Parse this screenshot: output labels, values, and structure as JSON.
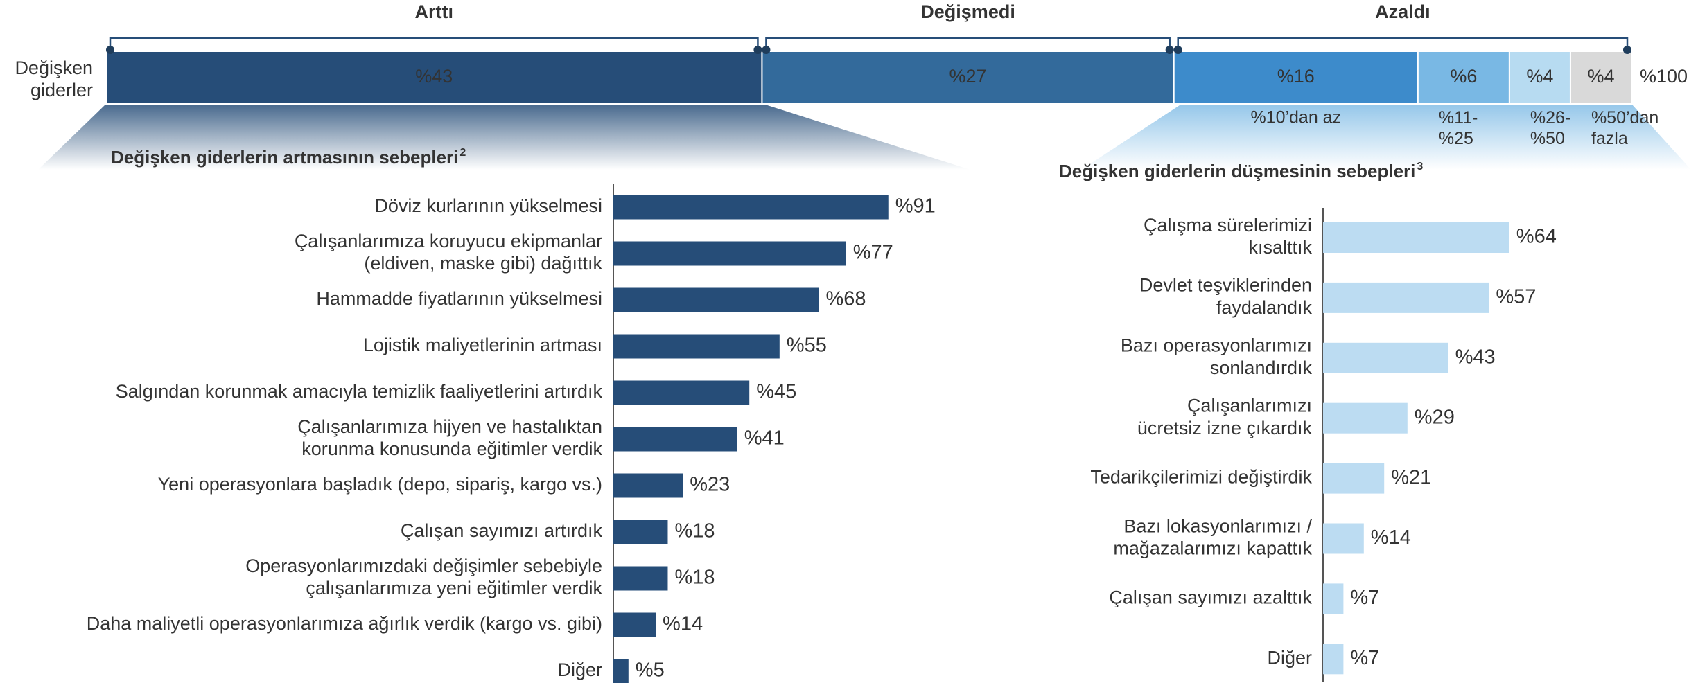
{
  "chart_data": [
    {
      "type": "stacked-bar",
      "row_label": "Değişken\ngiderler",
      "values": [
        43,
        27,
        16,
        6,
        4,
        4
      ],
      "value_labels": [
        "%43",
        "%27",
        "%16",
        "%6",
        "%4",
        "%4"
      ],
      "colors": [
        "#264d78",
        "#336a9b",
        "#3d8bcb",
        "#79b8e4",
        "#b7dbf1",
        "#d9d9d9"
      ],
      "sublabels": [
        null,
        null,
        "%10’dan az",
        "%11-\n%25",
        "%26-\n%50",
        "%50’dan\nfazla"
      ],
      "groups": [
        {
          "label": "Arttı",
          "segments": [
            0
          ]
        },
        {
          "label": "Değişmedi",
          "segments": [
            1
          ]
        },
        {
          "label": "Azaldı",
          "segments": [
            2,
            3,
            4,
            5
          ]
        }
      ],
      "total": 100,
      "total_label": "%100",
      "xlim": [
        0,
        100
      ]
    },
    {
      "type": "hbar",
      "title": "Değişken giderlerin artmasının sebepleri",
      "title_note": "2",
      "categories": [
        "Döviz kurlarının yükselmesi",
        "Çalışanlarımıza koruyucu ekipmanlar\n(eldiven, maske gibi) dağıttık",
        "Hammadde fiyatlarının yükselmesi",
        "Lojistik maliyetlerinin artması",
        "Salgından korunmak amacıyla temizlik faaliyetlerini artırdık",
        "Çalışanlarımıza hijyen ve hastalıktan\nkorunma konusunda eğitimler verdik",
        "Yeni operasyonlara başladık (depo, sipariş, kargo vs.)",
        "Çalışan sayımızı artırdık",
        "Operasyonlarımızdaki değişimler sebebiyle\nçalışanlarımıza yeni eğitimler verdik",
        "Daha maliyetli operasyonlarımıza ağırlık verdik (kargo vs. gibi)",
        "Diğer"
      ],
      "values": [
        91,
        77,
        68,
        55,
        45,
        41,
        23,
        18,
        18,
        14,
        5
      ],
      "value_labels": [
        "%91",
        "%77",
        "%68",
        "%55",
        "%45",
        "%41",
        "%23",
        "%18",
        "%18",
        "%14",
        "%5"
      ],
      "color": "#264d78",
      "xlim": [
        0,
        100
      ]
    },
    {
      "type": "hbar",
      "title": "Değişken giderlerin düşmesinin sebepleri",
      "title_note": "3",
      "categories": [
        "Çalışma sürelerimizi\nkısalttık",
        "Devlet teşviklerinden\nfaydalandık",
        "Bazı operasyonlarımızı\nsonlandırdık",
        "Çalışanlarımızı\nücretsiz izne çıkardık",
        "Tedarikçilerimizi değiştirdik",
        "Bazı lokasyonlarımızı /\nmağazalarımızı kapattık",
        "Çalışan sayımızı azalttık",
        "Diğer"
      ],
      "values": [
        64,
        57,
        43,
        29,
        21,
        14,
        7,
        7
      ],
      "value_labels": [
        "%64",
        "%57",
        "%43",
        "%29",
        "%21",
        "%14",
        "%7",
        "%7"
      ],
      "color": "#bcdcf2",
      "xlim": [
        0,
        100
      ]
    }
  ]
}
